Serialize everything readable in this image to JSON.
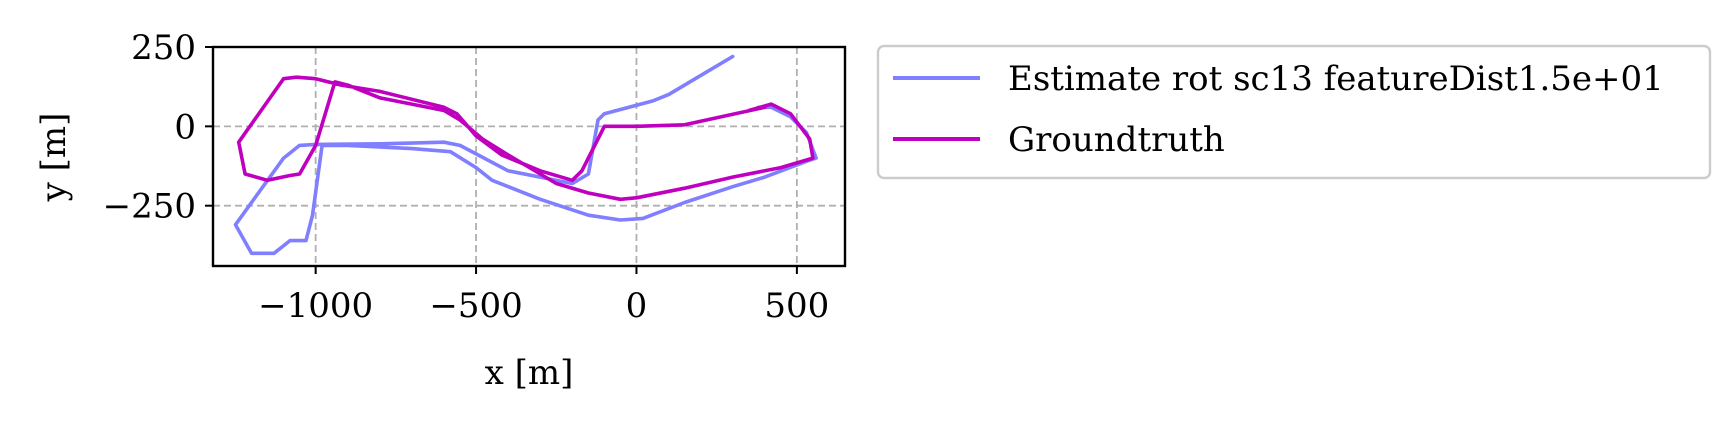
{
  "chart_data": {
    "type": "line",
    "title": "",
    "xlabel": "x [m]",
    "ylabel": "y [m]",
    "xlim": [
      -1320,
      650
    ],
    "ylim": [
      -440,
      250
    ],
    "x_ticks": [
      -1000,
      -500,
      0,
      500
    ],
    "x_tick_labels": [
      "−1000",
      "−500",
      "0",
      "500"
    ],
    "y_ticks": [
      250,
      0,
      -250
    ],
    "y_tick_labels": [
      "250",
      "0",
      "−250"
    ],
    "grid": true,
    "legend_position": "outside-right",
    "series": [
      {
        "name": "Estimate rot sc13 featureDist1.5e+01",
        "color": "#7f7fff",
        "points": [
          [
            300,
            220
          ],
          [
            200,
            160
          ],
          [
            100,
            100
          ],
          [
            50,
            80
          ],
          [
            -100,
            40
          ],
          [
            -120,
            20
          ],
          [
            -150,
            -150
          ],
          [
            -200,
            -180
          ],
          [
            -400,
            -140
          ],
          [
            -550,
            -60
          ],
          [
            -600,
            -50
          ],
          [
            -800,
            -55
          ],
          [
            -1000,
            -57
          ],
          [
            -1050,
            -60
          ],
          [
            -1100,
            -100
          ],
          [
            -1250,
            -310
          ],
          [
            -1200,
            -400
          ],
          [
            -1130,
            -400
          ],
          [
            -1080,
            -360
          ],
          [
            -1030,
            -360
          ],
          [
            -1010,
            -280
          ],
          [
            -980,
            -60
          ],
          [
            -900,
            -60
          ],
          [
            -700,
            -70
          ],
          [
            -580,
            -80
          ],
          [
            -500,
            -130
          ],
          [
            -450,
            -170
          ],
          [
            -300,
            -230
          ],
          [
            -150,
            -280
          ],
          [
            -50,
            -295
          ],
          [
            20,
            -290
          ],
          [
            150,
            -240
          ],
          [
            300,
            -190
          ],
          [
            400,
            -160
          ],
          [
            530,
            -110
          ],
          [
            560,
            -100
          ],
          [
            530,
            -20
          ],
          [
            480,
            30
          ],
          [
            420,
            60
          ],
          [
            380,
            60
          ]
        ]
      },
      {
        "name": "Groundtruth",
        "color": "#bf00bf",
        "points": [
          [
            350,
            50
          ],
          [
            420,
            70
          ],
          [
            480,
            40
          ],
          [
            510,
            0
          ],
          [
            540,
            -40
          ],
          [
            550,
            -100
          ],
          [
            450,
            -130
          ],
          [
            300,
            -160
          ],
          [
            150,
            -195
          ],
          [
            0,
            -225
          ],
          [
            -50,
            -230
          ],
          [
            -150,
            -210
          ],
          [
            -250,
            -180
          ],
          [
            -400,
            -90
          ],
          [
            -480,
            -40
          ],
          [
            -550,
            20
          ],
          [
            -600,
            50
          ],
          [
            -800,
            90
          ],
          [
            -900,
            130
          ],
          [
            -940,
            140
          ],
          [
            -1000,
            -60
          ],
          [
            -1050,
            -150
          ],
          [
            -1080,
            -155
          ],
          [
            -1150,
            -170
          ],
          [
            -1220,
            -150
          ],
          [
            -1240,
            -50
          ],
          [
            -1100,
            150
          ],
          [
            -1060,
            155
          ],
          [
            -1000,
            150
          ],
          [
            -920,
            130
          ],
          [
            -800,
            110
          ],
          [
            -600,
            60
          ],
          [
            -560,
            40
          ],
          [
            -500,
            -30
          ],
          [
            -420,
            -90
          ],
          [
            -300,
            -140
          ],
          [
            -200,
            -170
          ],
          [
            -170,
            -140
          ],
          [
            -100,
            0
          ],
          [
            -50,
            0
          ],
          [
            0,
            0
          ],
          [
            150,
            5
          ],
          [
            400,
            60
          ]
        ]
      }
    ]
  },
  "colors": {
    "grid": "#b0b0b0",
    "axis": "#000000",
    "legend_border": "#cccccc"
  }
}
